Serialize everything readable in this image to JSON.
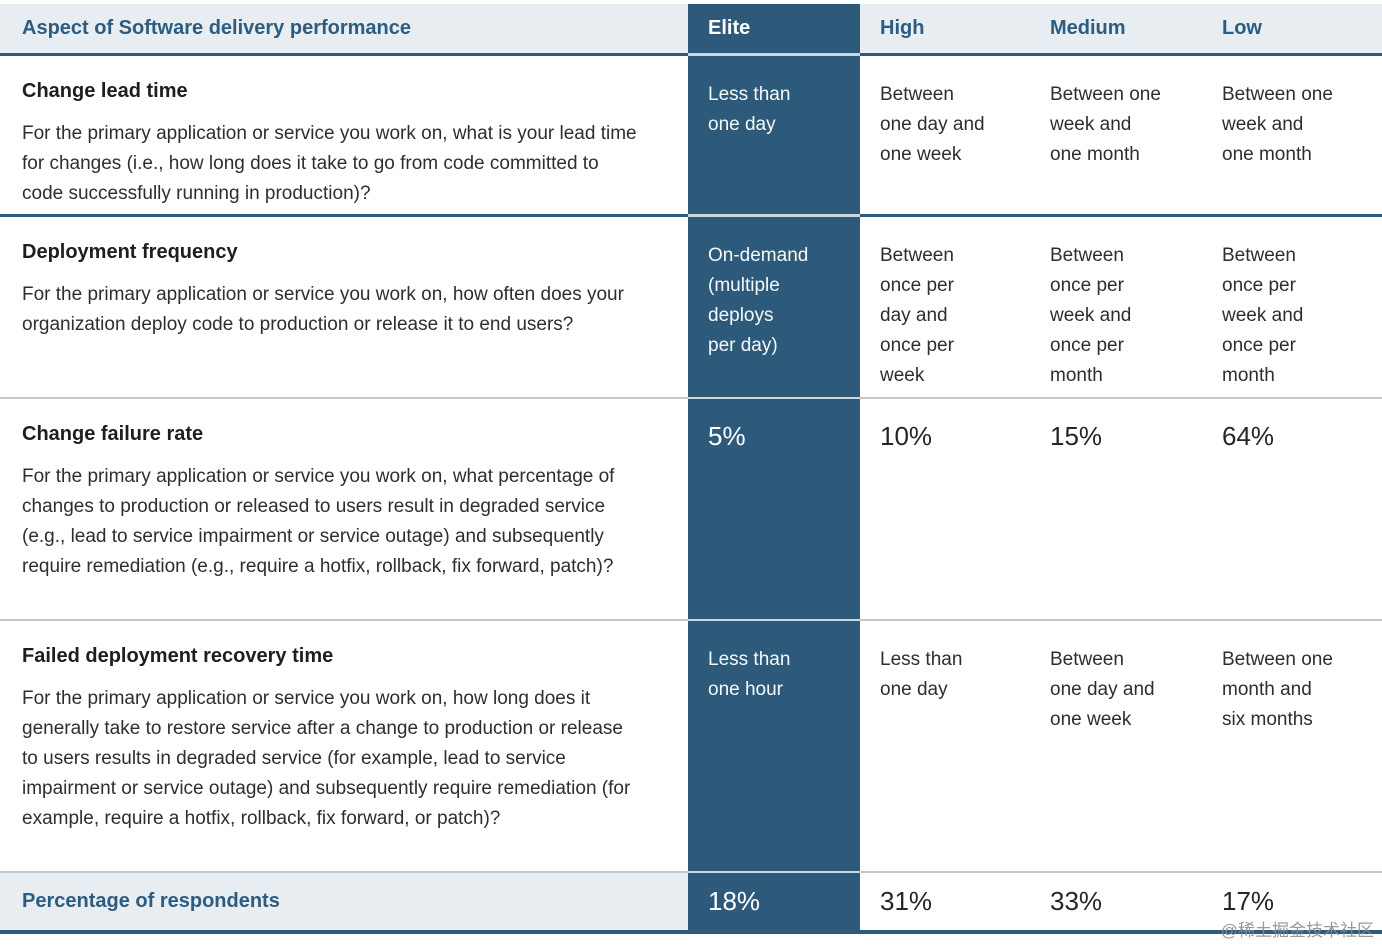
{
  "table": {
    "header": {
      "aspect": "Aspect of Software delivery performance",
      "levels": [
        "Elite",
        "High",
        "Medium",
        "Low"
      ]
    },
    "rows": [
      {
        "title": "Change lead time",
        "description": "For the primary application or service you work on, what is your lead time for changes (i.e., how long does it take to go from code committed to code successfully running in production)?",
        "elite": "Less than\none day",
        "high": "Between\none day and\none week",
        "medium": "Between one\nweek and\none month",
        "low": "Between one\nweek and\none month"
      },
      {
        "title": "Deployment frequency",
        "description": "For the primary application or service you work on, how often does your organization deploy code to production or release it to end users?",
        "elite": "On-demand\n(multiple\ndeploys\nper day)",
        "high": "Between\nonce per\nday and\nonce per\nweek",
        "medium": "Between\nonce per\nweek and\nonce per\nmonth",
        "low": "Between\nonce per\nweek and\nonce per\nmonth"
      },
      {
        "title": "Change failure rate",
        "description": "For the primary application or service you work on, what percentage of changes to production or released to users result in degraded service (e.g., lead to service impairment or service outage) and subsequently require remediation (e.g., require a hotfix, rollback, fix forward, patch)?",
        "elite": "5%",
        "high": "10%",
        "medium": "15%",
        "low": "64%"
      },
      {
        "title": "Failed deployment recovery time",
        "description": "For the primary application or service you work on, how long does it generally take to restore service after a change to production or release to users results in degraded service (for example, lead to service impairment or service outage) and subsequently require remediation (for example, require a hotfix, rollback, fix forward, or patch)?",
        "elite": "Less than\none hour",
        "high": "Less than\none day",
        "medium": "Between\none day and\none week",
        "low": "Between one\nmonth and\nsix months"
      }
    ],
    "footer": {
      "label": "Percentage of respondents",
      "elite": "18%",
      "high": "31%",
      "medium": "33%",
      "low": "17%"
    }
  },
  "watermark": "@稀土掘金技术社区",
  "colors": {
    "elite_column_bg": "#2d5a7a",
    "header_bg": "#e8edf2",
    "heading_text_blue": "#2b5c81",
    "dark_separator": "#2e5a7c",
    "light_separator": "#c4c8cb",
    "body_text": "#2e2e2e"
  }
}
